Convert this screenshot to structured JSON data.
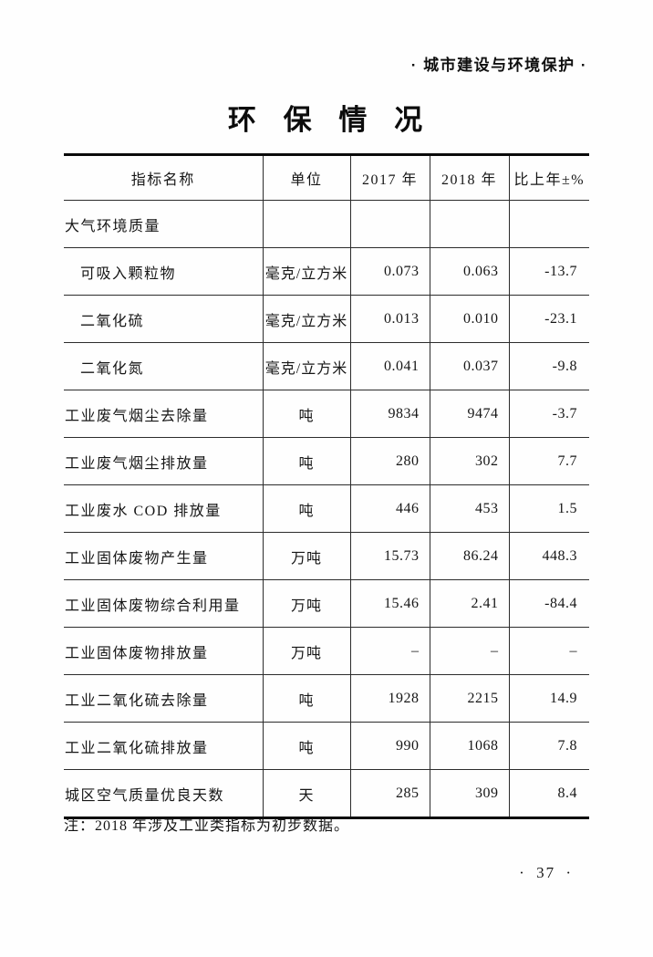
{
  "page": {
    "running_header": "· 城市建设与环境保护 ·",
    "title": "环 保 情 况",
    "note": "注：2018 年涉及工业类指标为初步数据。",
    "page_number": "· 37 ·"
  },
  "table": {
    "columns": [
      "指标名称",
      "单位",
      "2017 年",
      "2018 年",
      "比上年±%"
    ],
    "rows": [
      {
        "name": "大气环境质量",
        "unit": "",
        "y2017": "",
        "y2018": "",
        "change": ""
      },
      {
        "name": "可吸入颗粒物",
        "unit": "毫克/立方米",
        "y2017": "0.073",
        "y2018": "0.063",
        "change": "-13.7"
      },
      {
        "name": "二氧化硫",
        "unit": "毫克/立方米",
        "y2017": "0.013",
        "y2018": "0.010",
        "change": "-23.1"
      },
      {
        "name": "二氧化氮",
        "unit": "毫克/立方米",
        "y2017": "0.041",
        "y2018": "0.037",
        "change": "-9.8"
      },
      {
        "name": "工业废气烟尘去除量",
        "unit": "吨",
        "y2017": "9834",
        "y2018": "9474",
        "change": "-3.7"
      },
      {
        "name": "工业废气烟尘排放量",
        "unit": "吨",
        "y2017": "280",
        "y2018": "302",
        "change": "7.7"
      },
      {
        "name": "工业废水 COD 排放量",
        "unit": "吨",
        "y2017": "446",
        "y2018": "453",
        "change": "1.5"
      },
      {
        "name": "工业固体废物产生量",
        "unit": "万吨",
        "y2017": "15.73",
        "y2018": "86.24",
        "change": "448.3"
      },
      {
        "name": "工业固体废物综合利用量",
        "unit": "万吨",
        "y2017": "15.46",
        "y2018": "2.41",
        "change": "-84.4"
      },
      {
        "name": "工业固体废物排放量",
        "unit": "万吨",
        "y2017": "–",
        "y2018": "–",
        "change": "–"
      },
      {
        "name": "工业二氧化硫去除量",
        "unit": "吨",
        "y2017": "1928",
        "y2018": "2215",
        "change": "14.9"
      },
      {
        "name": "工业二氧化硫排放量",
        "unit": "吨",
        "y2017": "990",
        "y2018": "1068",
        "change": "7.8"
      },
      {
        "name": "城区空气质量优良天数",
        "unit": "天",
        "y2017": "285",
        "y2018": "309",
        "change": "8.4"
      }
    ]
  }
}
